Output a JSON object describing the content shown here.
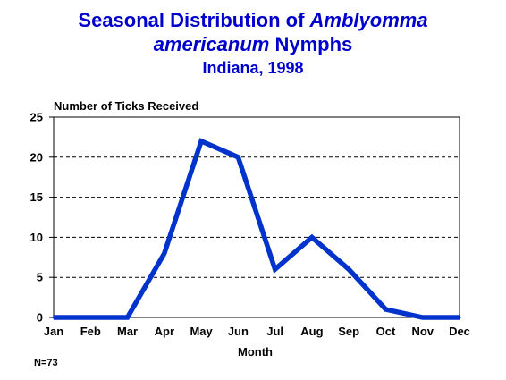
{
  "title": {
    "line1_prefix": "Seasonal Distribution of ",
    "line1_italic": "Amblyomma",
    "line2_italic": "americanum",
    "line2_suffix": " Nymphs",
    "line3": "Indiana, 1998"
  },
  "note": "N=73",
  "colors": {
    "title": "#0000cc",
    "line": "#0033cc",
    "axis": "#000000"
  },
  "chart_data": {
    "type": "line",
    "title": "Seasonal Distribution of Amblyomma americanum Nymphs",
    "subtitle": "Indiana, 1998",
    "xlabel": "Month",
    "ylabel": "Number of Ticks Received",
    "categories": [
      "Jan",
      "Feb",
      "Mar",
      "Apr",
      "May",
      "Jun",
      "Jul",
      "Aug",
      "Sep",
      "Oct",
      "Nov",
      "Dec"
    ],
    "values": [
      0,
      0,
      0,
      8,
      22,
      20,
      6,
      10,
      6,
      1,
      0,
      0
    ],
    "yticks": [
      0,
      5,
      10,
      15,
      20,
      25
    ],
    "ylim": [
      0,
      25
    ],
    "grid": "horizontal-dashed",
    "legend": "none"
  }
}
